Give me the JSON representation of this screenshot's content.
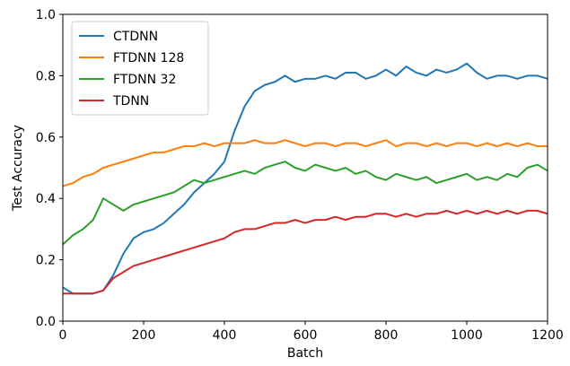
{
  "chart_data": {
    "type": "line",
    "xlabel": "Batch",
    "ylabel": "Test Accuracy",
    "xlim": [
      0,
      1200
    ],
    "ylim": [
      0.0,
      1.0
    ],
    "xticks": [
      0,
      200,
      400,
      600,
      800,
      1000,
      1200
    ],
    "yticks": [
      0.0,
      0.2,
      0.4,
      0.6,
      0.8,
      1.0
    ],
    "grid": false,
    "legend_position": "top-left",
    "series": [
      {
        "name": "CTDNN",
        "color": "#1f77b4",
        "x": [
          0,
          25,
          50,
          75,
          100,
          125,
          150,
          175,
          200,
          225,
          250,
          275,
          300,
          325,
          350,
          375,
          400,
          425,
          450,
          475,
          500,
          525,
          550,
          575,
          600,
          625,
          650,
          675,
          700,
          725,
          750,
          775,
          800,
          825,
          850,
          875,
          900,
          925,
          950,
          975,
          1000,
          1025,
          1050,
          1075,
          1100,
          1125,
          1150,
          1175,
          1200
        ],
        "y": [
          0.11,
          0.09,
          0.09,
          0.09,
          0.1,
          0.15,
          0.22,
          0.27,
          0.29,
          0.3,
          0.32,
          0.35,
          0.38,
          0.42,
          0.45,
          0.48,
          0.52,
          0.62,
          0.7,
          0.75,
          0.77,
          0.78,
          0.8,
          0.78,
          0.79,
          0.79,
          0.8,
          0.79,
          0.81,
          0.81,
          0.79,
          0.8,
          0.82,
          0.8,
          0.83,
          0.81,
          0.8,
          0.82,
          0.81,
          0.82,
          0.84,
          0.81,
          0.79,
          0.8,
          0.8,
          0.79,
          0.8,
          0.8,
          0.79
        ]
      },
      {
        "name": "FTDNN 128",
        "color": "#ff7f0e",
        "x": [
          0,
          25,
          50,
          75,
          100,
          125,
          150,
          175,
          200,
          225,
          250,
          275,
          300,
          325,
          350,
          375,
          400,
          425,
          450,
          475,
          500,
          525,
          550,
          575,
          600,
          625,
          650,
          675,
          700,
          725,
          750,
          775,
          800,
          825,
          850,
          875,
          900,
          925,
          950,
          975,
          1000,
          1025,
          1050,
          1075,
          1100,
          1125,
          1150,
          1175,
          1200
        ],
        "y": [
          0.44,
          0.45,
          0.47,
          0.48,
          0.5,
          0.51,
          0.52,
          0.53,
          0.54,
          0.55,
          0.55,
          0.56,
          0.57,
          0.57,
          0.58,
          0.57,
          0.58,
          0.58,
          0.58,
          0.59,
          0.58,
          0.58,
          0.59,
          0.58,
          0.57,
          0.58,
          0.58,
          0.57,
          0.58,
          0.58,
          0.57,
          0.58,
          0.59,
          0.57,
          0.58,
          0.58,
          0.57,
          0.58,
          0.57,
          0.58,
          0.58,
          0.57,
          0.58,
          0.57,
          0.58,
          0.57,
          0.58,
          0.57,
          0.57
        ]
      },
      {
        "name": "FTDNN 32",
        "color": "#2ca02c",
        "x": [
          0,
          25,
          50,
          75,
          100,
          125,
          150,
          175,
          200,
          225,
          250,
          275,
          300,
          325,
          350,
          375,
          400,
          425,
          450,
          475,
          500,
          525,
          550,
          575,
          600,
          625,
          650,
          675,
          700,
          725,
          750,
          775,
          800,
          825,
          850,
          875,
          900,
          925,
          950,
          975,
          1000,
          1025,
          1050,
          1075,
          1100,
          1125,
          1150,
          1175,
          1200
        ],
        "y": [
          0.25,
          0.28,
          0.3,
          0.33,
          0.4,
          0.38,
          0.36,
          0.38,
          0.39,
          0.4,
          0.41,
          0.42,
          0.44,
          0.46,
          0.45,
          0.46,
          0.47,
          0.48,
          0.49,
          0.48,
          0.5,
          0.51,
          0.52,
          0.5,
          0.49,
          0.51,
          0.5,
          0.49,
          0.5,
          0.48,
          0.49,
          0.47,
          0.46,
          0.48,
          0.47,
          0.46,
          0.47,
          0.45,
          0.46,
          0.47,
          0.48,
          0.46,
          0.47,
          0.46,
          0.48,
          0.47,
          0.5,
          0.51,
          0.49
        ]
      },
      {
        "name": "TDNN",
        "color": "#d62728",
        "x": [
          0,
          25,
          50,
          75,
          100,
          125,
          150,
          175,
          200,
          225,
          250,
          275,
          300,
          325,
          350,
          375,
          400,
          425,
          450,
          475,
          500,
          525,
          550,
          575,
          600,
          625,
          650,
          675,
          700,
          725,
          750,
          775,
          800,
          825,
          850,
          875,
          900,
          925,
          950,
          975,
          1000,
          1025,
          1050,
          1075,
          1100,
          1125,
          1150,
          1175,
          1200
        ],
        "y": [
          0.09,
          0.09,
          0.09,
          0.09,
          0.1,
          0.14,
          0.16,
          0.18,
          0.19,
          0.2,
          0.21,
          0.22,
          0.23,
          0.24,
          0.25,
          0.26,
          0.27,
          0.29,
          0.3,
          0.3,
          0.31,
          0.32,
          0.32,
          0.33,
          0.32,
          0.33,
          0.33,
          0.34,
          0.33,
          0.34,
          0.34,
          0.35,
          0.35,
          0.34,
          0.35,
          0.34,
          0.35,
          0.35,
          0.36,
          0.35,
          0.36,
          0.35,
          0.36,
          0.35,
          0.36,
          0.35,
          0.36,
          0.36,
          0.35
        ]
      }
    ]
  }
}
